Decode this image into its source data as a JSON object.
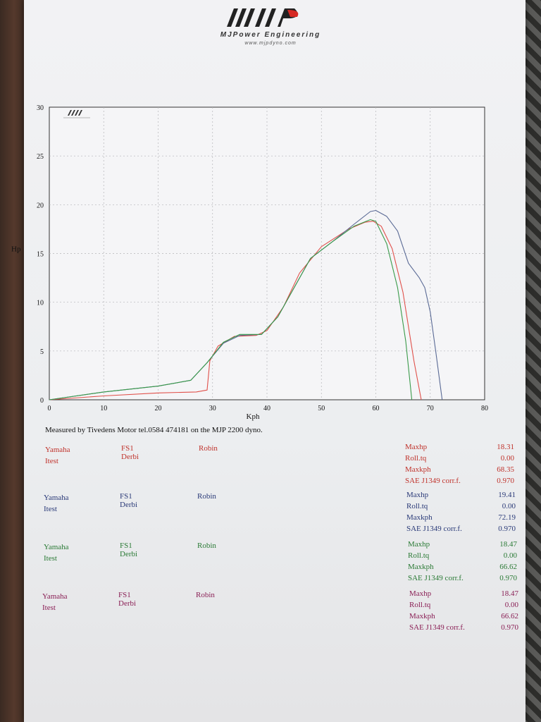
{
  "header": {
    "logo_text": "MJP",
    "company": "MJPower Engineering",
    "url": "www.mjpdyno.com"
  },
  "chart_data": {
    "type": "line",
    "xlabel": "Kph",
    "ylabel": "Hp",
    "xlim": [
      0,
      80
    ],
    "ylim": [
      0,
      30
    ],
    "xticks": [
      0,
      10,
      20,
      30,
      40,
      50,
      60,
      70,
      80
    ],
    "yticks": [
      0,
      5,
      10,
      15,
      20,
      25,
      30
    ],
    "grid": true,
    "series": [
      {
        "color": "#e0504a",
        "points": [
          [
            0,
            0
          ],
          [
            10,
            0.4
          ],
          [
            20,
            0.7
          ],
          [
            27,
            0.8
          ],
          [
            29,
            1.0
          ],
          [
            29.5,
            4.0
          ],
          [
            31,
            5.5
          ],
          [
            34,
            6.5
          ],
          [
            38,
            6.6
          ],
          [
            40,
            7.1
          ],
          [
            43,
            9.5
          ],
          [
            46,
            13
          ],
          [
            50,
            15.7
          ],
          [
            55,
            17.5
          ],
          [
            58,
            18.2
          ],
          [
            59.5,
            18.31
          ],
          [
            61,
            17.8
          ],
          [
            63,
            15.5
          ],
          [
            65,
            11
          ],
          [
            67,
            4
          ],
          [
            68.35,
            0
          ]
        ]
      },
      {
        "color": "#5a6a95",
        "points": [
          [
            0,
            0
          ],
          [
            10,
            0.8
          ],
          [
            20,
            1.4
          ],
          [
            26,
            2.0
          ],
          [
            29,
            3.8
          ],
          [
            32,
            5.8
          ],
          [
            35,
            6.6
          ],
          [
            39,
            6.7
          ],
          [
            42,
            8.5
          ],
          [
            45,
            11.5
          ],
          [
            48,
            14.5
          ],
          [
            52,
            16.2
          ],
          [
            56,
            18.0
          ],
          [
            59,
            19.3
          ],
          [
            60,
            19.41
          ],
          [
            62,
            18.8
          ],
          [
            64,
            17.3
          ],
          [
            66,
            14.0
          ],
          [
            68,
            12.5
          ],
          [
            69,
            11.5
          ],
          [
            70,
            9.0
          ],
          [
            71,
            5.0
          ],
          [
            72.19,
            0
          ]
        ]
      },
      {
        "color": "#3a9a4a",
        "points": [
          [
            0,
            0
          ],
          [
            10,
            0.8
          ],
          [
            20,
            1.4
          ],
          [
            26,
            2.0
          ],
          [
            29,
            3.8
          ],
          [
            32,
            5.9
          ],
          [
            35,
            6.7
          ],
          [
            39,
            6.7
          ],
          [
            42,
            8.5
          ],
          [
            45,
            11.5
          ],
          [
            48,
            14.5
          ],
          [
            52,
            16.2
          ],
          [
            56,
            17.8
          ],
          [
            59,
            18.47
          ],
          [
            60,
            18.3
          ],
          [
            62,
            16.0
          ],
          [
            64,
            11.5
          ],
          [
            65.5,
            6.0
          ],
          [
            66.62,
            0
          ]
        ]
      }
    ]
  },
  "measured_text": "Measured by Tivedens Motor tel.0584 474181 on the MJP 2200 dyno.",
  "runs": [
    {
      "color": "#c0332c",
      "make": "Yamaha",
      "test": "Itest",
      "model": "FS1 Derbi",
      "rider": "Robin",
      "maxhp_label": "Maxhp",
      "maxhp": "18.31",
      "rolltq_label": "Roll.tq",
      "rolltq": "0.00",
      "maxkph_label": "Maxkph",
      "maxkph": "68.35",
      "corr_label": "SAE J1349 corr.f.",
      "corr": "0.970"
    },
    {
      "color": "#2a3a78",
      "make": "Yamaha",
      "test": "Itest",
      "model": "FS1 Derbi",
      "rider": "Robin",
      "maxhp_label": "Maxhp",
      "maxhp": "19.41",
      "rolltq_label": "Roll.tq",
      "rolltq": "0.00",
      "maxkph_label": "Maxkph",
      "maxkph": "72.19",
      "corr_label": "SAE J1349 corr.f.",
      "corr": "0.970"
    },
    {
      "color": "#2a7a35",
      "make": "Yamaha",
      "test": "Itest",
      "model": "FS1 Derbi",
      "rider": "Robin",
      "maxhp_label": "Maxhp",
      "maxhp": "18.47",
      "rolltq_label": "Roll.tq",
      "rolltq": "0.00",
      "maxkph_label": "Maxkph",
      "maxkph": "66.62",
      "corr_label": "SAE J1349 corr.f.",
      "corr": "0.970"
    },
    {
      "color": "#8a1f55",
      "make": "Yamaha",
      "test": "Itest",
      "model": "FS1 Derbi",
      "rider": "Robin",
      "maxhp_label": "Maxhp",
      "maxhp": "18.47",
      "rolltq_label": "Roll.tq",
      "rolltq": "0.00",
      "maxkph_label": "Maxkph",
      "maxkph": "66.62",
      "corr_label": "SAE J1349 corr.f.",
      "corr": "0.970"
    }
  ]
}
